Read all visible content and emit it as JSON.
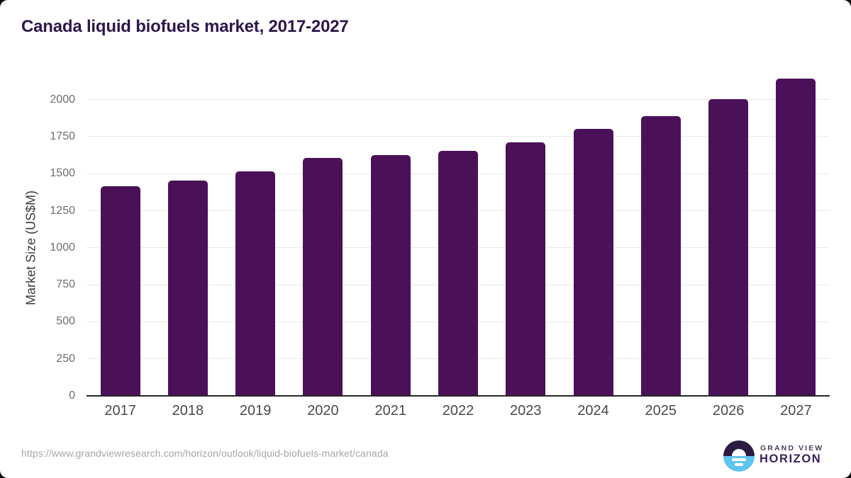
{
  "title": "Canada liquid biofuels market, 2017-2027",
  "chart_data": {
    "type": "bar",
    "categories": [
      "2017",
      "2018",
      "2019",
      "2020",
      "2021",
      "2022",
      "2023",
      "2024",
      "2025",
      "2026",
      "2027"
    ],
    "values": [
      1415,
      1455,
      1515,
      1605,
      1625,
      1655,
      1710,
      1800,
      1890,
      2005,
      2140
    ],
    "title": "Canada liquid biofuels market, 2017-2027",
    "xlabel": "",
    "ylabel": "Market Size (US$M)",
    "ylim": [
      0,
      2200
    ],
    "yticks": [
      0,
      250,
      500,
      750,
      1000,
      1250,
      1500,
      1750,
      2000
    ],
    "grid": true,
    "legend": "none",
    "bar_color": "#4a1158"
  },
  "colors": {
    "bar": "#4a1158",
    "title": "#2d174d",
    "grid": "#e8e8e8",
    "axis": "#262626",
    "xtick": "#4a4a4a",
    "ytick": "#6e6e6e",
    "ytitle": "#3d3d3d",
    "url": "#a6a6a6",
    "logo_dark": "#2b1a41",
    "logo_blue": "#5fc4ef",
    "logo_text": "#3a2058"
  },
  "footer": {
    "url": "https://www.grandviewresearch.com/horizon/outlook/liquid-biofuels-market/canada",
    "logo": {
      "icon": "sunrise-horizon-icon",
      "line1": "GRAND VIEW",
      "line2": "HORIZON"
    }
  }
}
